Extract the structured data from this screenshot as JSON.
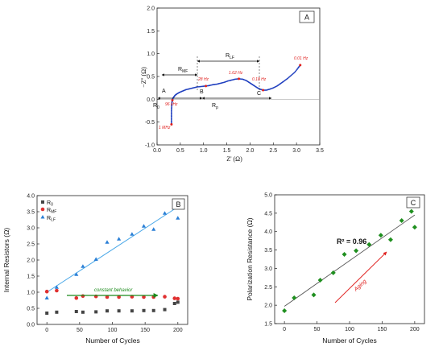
{
  "chart_data": [
    {
      "panel": "A",
      "type": "line",
      "xlabel": "Z' (Ω)",
      "ylabel": "−Z'' (Ω)",
      "xlim": [
        0,
        3.5
      ],
      "ylim": [
        -1.0,
        2.0
      ],
      "xticks": [
        "0.0",
        "0.5",
        "1.0",
        "1.5",
        "2.0",
        "2.5",
        "3.0",
        "3.5"
      ],
      "yticks": [
        "-1.0",
        "-0.5",
        "0.0",
        "0.5",
        "1.0",
        "1.5",
        "2.0"
      ],
      "series": [
        {
          "x": [
            0.31,
            0.31,
            0.31,
            0.31,
            0.315,
            0.32,
            0.33,
            0.34,
            0.36,
            0.39,
            0.43,
            0.48,
            0.55,
            0.62,
            0.7,
            0.78,
            0.86,
            0.95,
            1.04,
            1.12,
            1.2,
            1.28,
            1.36,
            1.44,
            1.52,
            1.6,
            1.68,
            1.76,
            1.84,
            1.92,
            1.98,
            2.04,
            2.1,
            2.16,
            2.22,
            2.28,
            2.35,
            2.42,
            2.5,
            2.58,
            2.65,
            2.72,
            2.8,
            2.88,
            2.96,
            3.03,
            3.08
          ],
          "y": [
            -0.55,
            -0.45,
            -0.35,
            -0.25,
            -0.15,
            -0.07,
            -0.02,
            0.02,
            0.05,
            0.09,
            0.12,
            0.15,
            0.18,
            0.21,
            0.23,
            0.25,
            0.27,
            0.28,
            0.29,
            0.3,
            0.32,
            0.33,
            0.35,
            0.37,
            0.4,
            0.42,
            0.44,
            0.45,
            0.44,
            0.41,
            0.37,
            0.33,
            0.29,
            0.25,
            0.22,
            0.2,
            0.2,
            0.22,
            0.25,
            0.29,
            0.34,
            0.39,
            0.45,
            0.52,
            0.59,
            0.68,
            0.75
          ]
        }
      ],
      "annotations": {
        "panel_label": "A",
        "point_A": "A",
        "point_B": "B",
        "point_C": "C",
        "freq_1MHz": "1 MHz",
        "freq_96kHz": "96 kHz",
        "freq_28Hz": "28 Hz",
        "freq_162Hz": "1.62 Hz",
        "freq_018Hz": "0.18 Hz",
        "freq_001Hz": "0.01 Hz",
        "R0_main": "R",
        "R0_sub": "0",
        "RMF_main": "R",
        "RMF_sub": "MF",
        "RLF_main": "R",
        "RLF_sub": "LF",
        "Rp_main": "R",
        "Rp_sub": "p"
      }
    },
    {
      "panel": "B",
      "type": "scatter",
      "xlabel": "Number of Cycles",
      "ylabel": "Internal Resistors (Ω)",
      "xlim": [
        -15,
        215
      ],
      "ylim": [
        0,
        4.0
      ],
      "xticks": [
        "0",
        "50",
        "100",
        "150",
        "200"
      ],
      "yticks": [
        "0.0",
        "0.5",
        "1.0",
        "1.5",
        "2.0",
        "2.5",
        "3.0",
        "3.5",
        "4.0"
      ],
      "series": [
        {
          "name": "R0",
          "legend_main": "R",
          "legend_sub": "0",
          "color": "#444444",
          "x": [
            0,
            15,
            45,
            55,
            75,
            92,
            110,
            130,
            148,
            163,
            180,
            195,
            200
          ],
          "y": [
            0.35,
            0.38,
            0.4,
            0.38,
            0.39,
            0.42,
            0.42,
            0.42,
            0.43,
            0.43,
            0.46,
            0.65,
            0.69
          ]
        },
        {
          "name": "RMF",
          "legend_main": "R",
          "legend_sub": "MF",
          "color": "#e03030",
          "x": [
            0,
            15,
            45,
            55,
            75,
            92,
            110,
            130,
            148,
            163,
            180,
            195,
            200
          ],
          "y": [
            1.02,
            1.05,
            0.82,
            0.88,
            0.87,
            0.85,
            0.85,
            0.86,
            0.85,
            0.85,
            0.86,
            0.81,
            0.8
          ]
        },
        {
          "name": "RLF",
          "legend_main": "R",
          "legend_sub": "LF",
          "color": "#2a7fd6",
          "x": [
            0,
            15,
            45,
            55,
            75,
            92,
            110,
            130,
            148,
            163,
            180,
            195,
            200
          ],
          "y": [
            0.82,
            1.15,
            1.55,
            1.8,
            2.02,
            2.55,
            2.65,
            2.8,
            3.05,
            2.95,
            3.45,
            3.75,
            3.3
          ]
        }
      ],
      "trendline": {
        "x": [
          0,
          200
        ],
        "y": [
          1.0,
          3.65
        ]
      },
      "annotations": {
        "panel_label": "B",
        "constant_text": "constant behavior"
      }
    },
    {
      "panel": "C",
      "type": "scatter",
      "xlabel": "Number of Cycles",
      "ylabel": "Polarization Resistance (Ω)",
      "xlim": [
        -15,
        215
      ],
      "ylim": [
        1.5,
        5.0
      ],
      "xticks": [
        "0",
        "50",
        "100",
        "150",
        "200"
      ],
      "yticks": [
        "1.5",
        "2.0",
        "2.5",
        "3.0",
        "3.5",
        "4.0",
        "4.5",
        "5.0"
      ],
      "series": [
        {
          "color": "#1f8f1f",
          "x": [
            0,
            15,
            45,
            55,
            75,
            92,
            110,
            130,
            148,
            163,
            180,
            195,
            200
          ],
          "y": [
            1.85,
            2.2,
            2.28,
            2.68,
            2.88,
            3.38,
            3.48,
            3.65,
            3.9,
            3.78,
            4.3,
            4.55,
            4.12
          ]
        }
      ],
      "trendline": {
        "x": [
          0,
          200
        ],
        "y": [
          1.97,
          4.45
        ]
      },
      "annotations": {
        "panel_label": "C",
        "r2_text": "R² = 0.96",
        "aging_text": "Aging"
      }
    }
  ]
}
